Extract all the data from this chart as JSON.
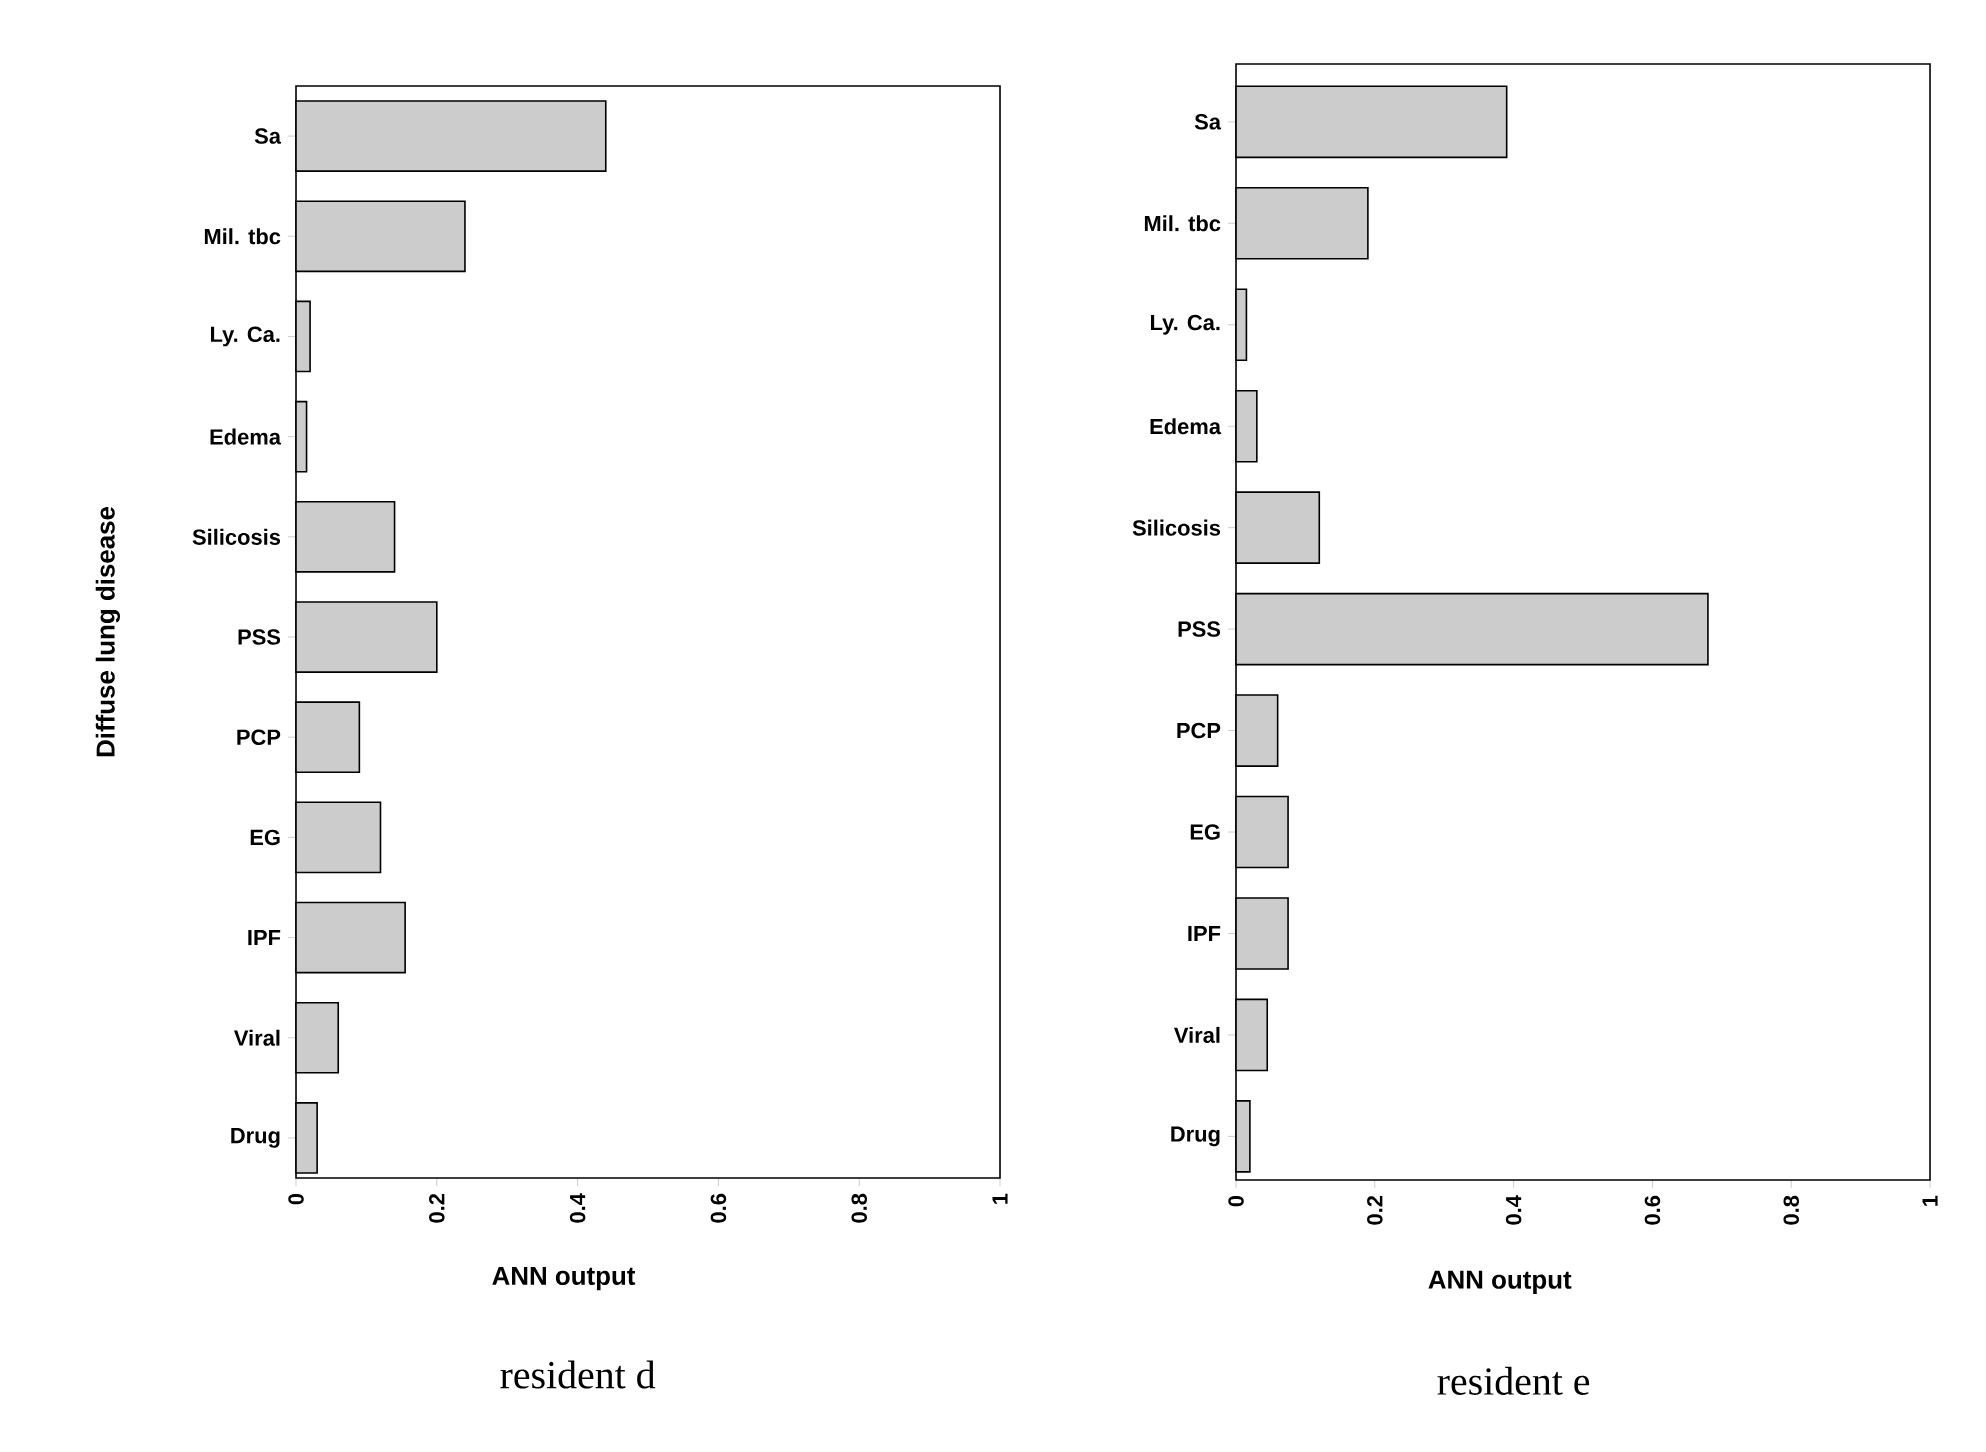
{
  "chart_data": [
    {
      "type": "bar",
      "orientation": "horizontal",
      "xlabel": "ANN output",
      "ylabel": "Diffuse lung disease",
      "categories": [
        "Sa",
        "Mil. tbc",
        "Ly. Ca.",
        "Edema",
        "Silicosis",
        "PSS",
        "PCP",
        "EG",
        "IPF",
        "Viral",
        "Drug"
      ],
      "values": [
        0.44,
        0.24,
        0.02,
        0.015,
        0.14,
        0.2,
        0.09,
        0.12,
        0.155,
        0.06,
        0.03
      ],
      "color": "#cccccc",
      "xlim": [
        0,
        1
      ],
      "xticks": [
        0,
        0.2,
        0.4,
        0.6,
        0.8,
        1
      ],
      "grid": false,
      "annotations": [
        "resident d"
      ]
    },
    {
      "type": "bar",
      "orientation": "horizontal",
      "xlabel": "ANN output",
      "categories": [
        "Sa",
        "Mil. tbc",
        "Ly. Ca.",
        "Edema",
        "Silicosis",
        "PSS",
        "PCP",
        "EG",
        "IPF",
        "Viral",
        "Drug"
      ],
      "values": [
        0.39,
        0.19,
        0.015,
        0.03,
        0.12,
        0.68,
        0.06,
        0.075,
        0.075,
        0.045,
        0.02
      ],
      "color": "#cccccc",
      "xlim": [
        0,
        1
      ],
      "xticks": [
        0,
        0.2,
        0.4,
        0.6,
        0.8,
        1
      ],
      "grid": false,
      "annotations": [
        "resident e"
      ]
    }
  ]
}
